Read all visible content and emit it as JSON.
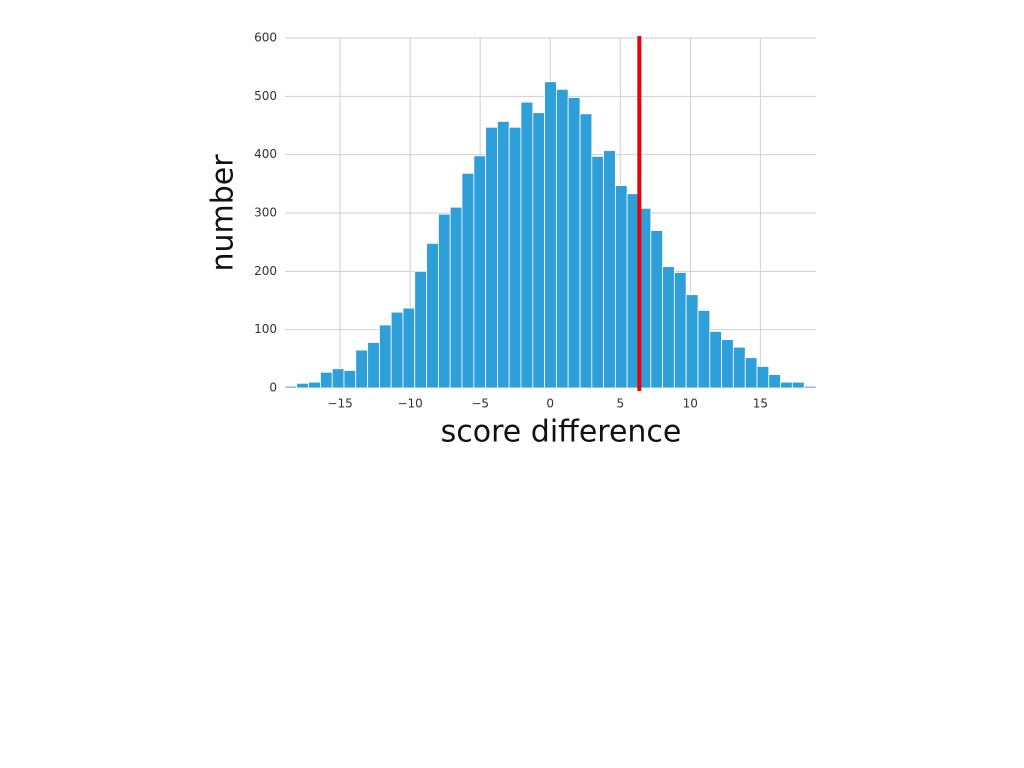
{
  "chart_data": {
    "type": "histogram",
    "xlabel": "score difference",
    "ylabel": "number",
    "bins": [
      -18.93,
      -18.09,
      -17.25,
      -16.4,
      -15.56,
      -14.72,
      -13.88,
      -13.03,
      -12.19,
      -11.35,
      -10.51,
      -9.67,
      -8.82,
      -7.98,
      -7.14,
      -6.3,
      -5.45,
      -4.61,
      -3.77,
      -2.93,
      -2.09,
      -1.24,
      -0.4,
      0.44,
      1.28,
      2.13,
      2.97,
      3.81,
      4.65,
      5.49,
      6.34,
      7.18,
      8.02,
      8.86,
      9.7,
      10.55,
      11.39,
      12.23,
      13.07,
      13.92,
      14.76,
      15.6,
      16.44,
      17.28,
      18.13,
      18.97
    ],
    "values": [
      3,
      8,
      10,
      27,
      33,
      30,
      65,
      78,
      108,
      130,
      137,
      200,
      248,
      298,
      310,
      368,
      398,
      447,
      457,
      447,
      490,
      472,
      525,
      512,
      498,
      470,
      397,
      407,
      347,
      333,
      308,
      270,
      208,
      198,
      160,
      133,
      97,
      83,
      70,
      52,
      37,
      23,
      10,
      10,
      3
    ],
    "color": "#2e9fd9",
    "xlim": [
      -18.93,
      18.97
    ],
    "xticks": [
      {
        "value": -15,
        "label": "−15"
      },
      {
        "value": -10,
        "label": "−10"
      },
      {
        "value": -5,
        "label": "−5"
      },
      0,
      5,
      10,
      15
    ],
    "ylim": [
      0,
      600
    ],
    "yticks": [
      0,
      100,
      200,
      300,
      400,
      500,
      600
    ],
    "grid": true,
    "vline": {
      "value": 6.36,
      "color": "#e8000b"
    }
  }
}
